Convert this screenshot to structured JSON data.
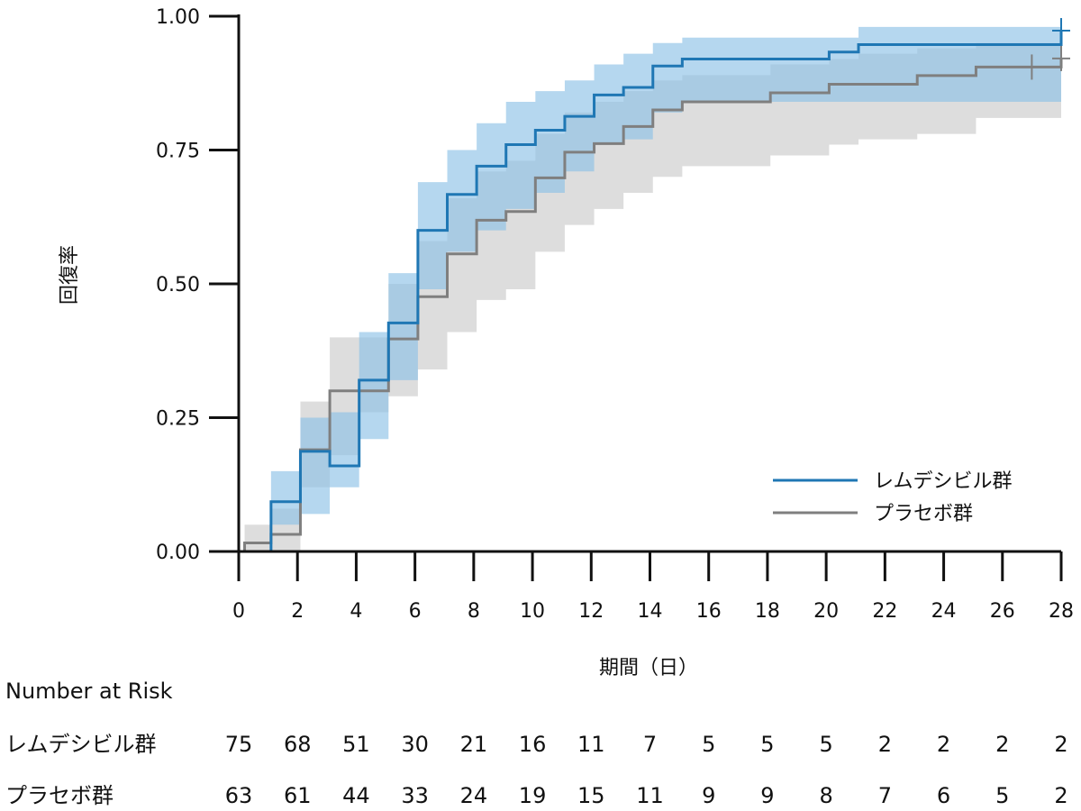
{
  "chart_data": {
    "type": "line",
    "step": true,
    "xlabel": "期間（日）",
    "ylabel": "回復率",
    "xlim": [
      0,
      28
    ],
    "ylim": [
      0,
      1
    ],
    "x_ticks": [
      0,
      2,
      4,
      6,
      8,
      10,
      12,
      14,
      16,
      18,
      20,
      22,
      24,
      26,
      28
    ],
    "y_ticks": [
      "0.00",
      "0.25",
      "0.50",
      "0.75",
      "1.00"
    ],
    "grid": false,
    "legend_position": "lower-right",
    "series": [
      {
        "name": "レムデシビル群",
        "color": "#1f77b4",
        "band_color": "#8ec1e6",
        "x": [
          0,
          1.1,
          2.1,
          3.1,
          4.1,
          5.1,
          6.1,
          7.1,
          8.1,
          9.1,
          10.1,
          11.1,
          12.1,
          13.1,
          14.1,
          15.1,
          20.1,
          21.1,
          28
        ],
        "y": [
          0.0,
          0.093,
          0.187,
          0.16,
          0.32,
          0.427,
          0.6,
          0.667,
          0.72,
          0.76,
          0.787,
          0.813,
          0.853,
          0.867,
          0.907,
          0.92,
          0.933,
          0.947,
          0.973
        ],
        "lower": [
          0.0,
          0.05,
          0.07,
          0.12,
          0.21,
          0.32,
          0.49,
          0.56,
          0.6,
          0.64,
          0.67,
          0.71,
          0.76,
          0.77,
          0.82,
          0.84,
          0.84,
          0.84,
          0.88
        ],
        "upper": [
          0.0,
          0.15,
          0.25,
          0.26,
          0.41,
          0.52,
          0.69,
          0.75,
          0.8,
          0.84,
          0.86,
          0.88,
          0.91,
          0.93,
          0.95,
          0.96,
          0.96,
          0.98,
          0.99
        ],
        "censor_x": [
          28
        ]
      },
      {
        "name": "プラセボ群",
        "color": "#7f7f7f",
        "band_color": "#d9d9d9",
        "x": [
          0,
          0.2,
          1.1,
          2.1,
          3.1,
          4.1,
          5.1,
          6.1,
          7.1,
          8.1,
          9.1,
          10.1,
          11.1,
          12.1,
          13.1,
          14.1,
          15.1,
          18.1,
          20.1,
          21.1,
          23.1,
          25.1,
          28
        ],
        "y": [
          0.0,
          0.016,
          0.032,
          0.19,
          0.3,
          0.3,
          0.397,
          0.476,
          0.556,
          0.619,
          0.635,
          0.698,
          0.746,
          0.762,
          0.794,
          0.825,
          0.84,
          0.857,
          0.873,
          0.873,
          0.889,
          0.905,
          0.921
        ],
        "lower": [
          0.0,
          0.0,
          0.0,
          0.12,
          0.18,
          0.26,
          0.29,
          0.34,
          0.41,
          0.47,
          0.49,
          0.56,
          0.61,
          0.64,
          0.67,
          0.7,
          0.72,
          0.74,
          0.76,
          0.77,
          0.78,
          0.81,
          0.82
        ],
        "upper": [
          0.0,
          0.05,
          0.08,
          0.28,
          0.4,
          0.4,
          0.5,
          0.58,
          0.66,
          0.71,
          0.73,
          0.78,
          0.82,
          0.84,
          0.86,
          0.88,
          0.89,
          0.91,
          0.92,
          0.93,
          0.94,
          0.95,
          0.96
        ],
        "censor_x": [
          27,
          28
        ]
      }
    ],
    "number_at_risk": {
      "title": "Number at Risk",
      "groups": [
        {
          "label": "レムデシビル群",
          "values": [
            75,
            68,
            51,
            30,
            21,
            16,
            11,
            7,
            5,
            5,
            5,
            2,
            2,
            2,
            2
          ]
        },
        {
          "label": "プラセボ群",
          "values": [
            63,
            61,
            44,
            33,
            24,
            19,
            15,
            11,
            9,
            9,
            8,
            7,
            6,
            5,
            2
          ]
        }
      ]
    }
  }
}
